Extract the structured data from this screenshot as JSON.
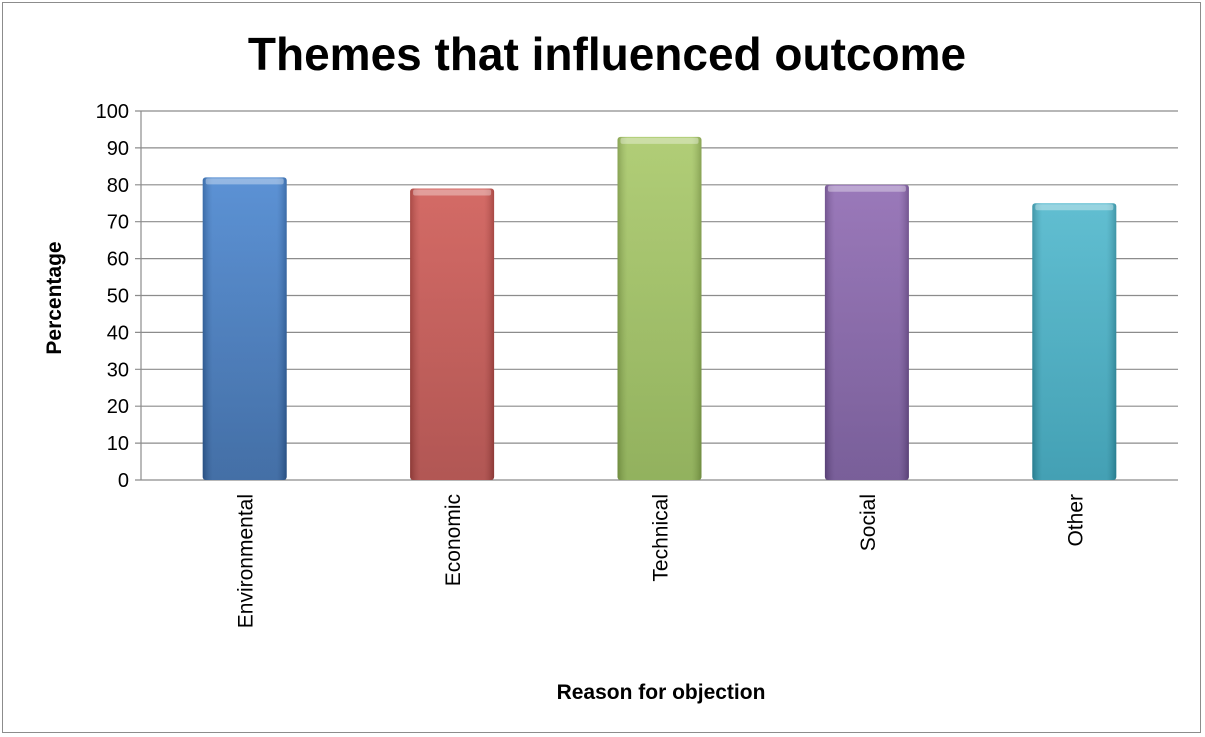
{
  "chart_data": {
    "type": "bar",
    "title": "Themes that influenced outcome",
    "xlabel": "Reason for objection",
    "ylabel": "Percentage",
    "categories": [
      "Environmental",
      "Economic",
      "Technical",
      "Social",
      "Other"
    ],
    "values": [
      82,
      79,
      93,
      80,
      75
    ],
    "ylim": [
      0,
      100
    ],
    "yticks": [
      "0",
      "10",
      "20",
      "30",
      "40",
      "50",
      "60",
      "70",
      "80",
      "90",
      "100"
    ],
    "grid": true,
    "legend": "none",
    "colors": {
      "Environmental": [
        "#2f5f9c",
        "#4a86d0"
      ],
      "Economic": [
        "#a94441",
        "#cf5a55"
      ],
      "Technical": [
        "#86a94c",
        "#a8c868"
      ],
      "Social": [
        "#6a4d8e",
        "#8f6ab2"
      ],
      "Other": [
        "#2f96ac",
        "#4fb7cc"
      ]
    }
  }
}
